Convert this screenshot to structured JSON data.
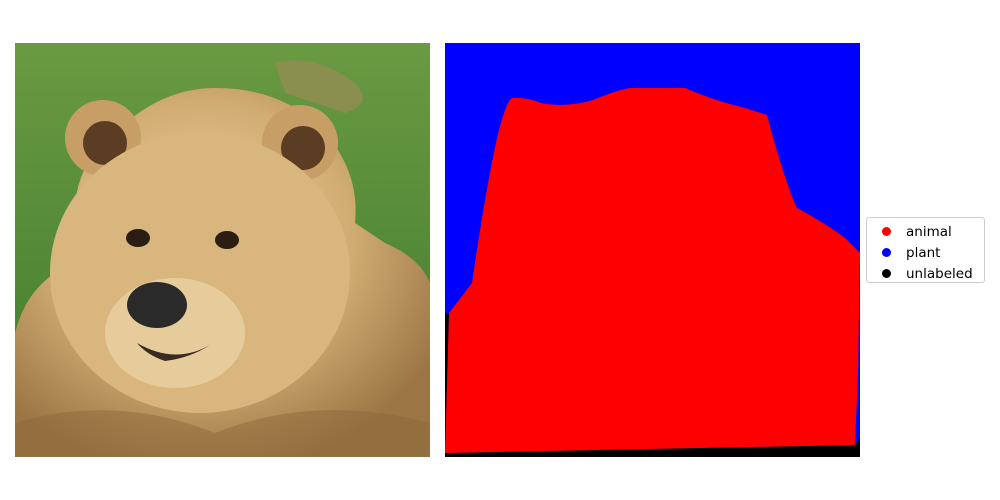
{
  "colors": {
    "animal": "#ff0000",
    "plant": "#0000ff",
    "unlabeled": "#000000",
    "grass": "#4f8a33",
    "fur": "#d8b57c",
    "fur_dark": "#8c6a3c",
    "nose": "#2a2a2a"
  },
  "photo": {
    "subject": "brown-bear",
    "background": "grass"
  },
  "legend": {
    "items": [
      {
        "label": "animal",
        "color": "#ff0000"
      },
      {
        "label": "plant",
        "color": "#0000ff"
      },
      {
        "label": "unlabeled",
        "color": "#000000"
      }
    ]
  }
}
